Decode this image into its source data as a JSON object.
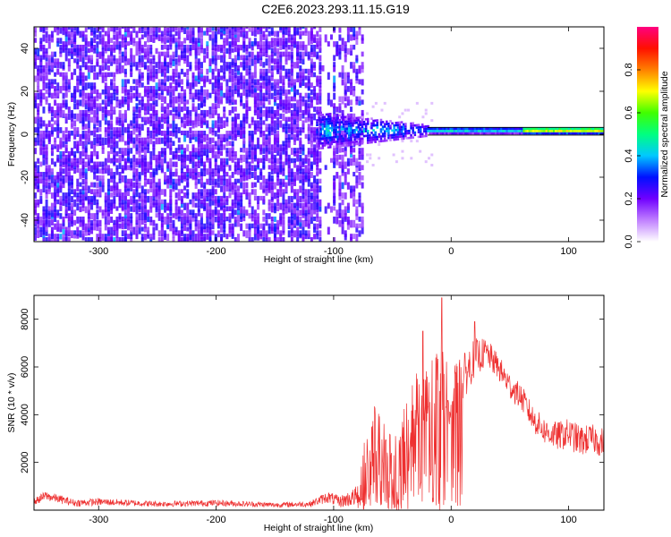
{
  "title": "C2E6.2023.293.11.15.G19",
  "chart_data": [
    {
      "type": "heatmap",
      "xlabel": "Height of straight line (km)",
      "ylabel": "Frequency (Hz)",
      "xlim": [
        -355,
        130
      ],
      "ylim": [
        -50,
        50
      ],
      "x_ticks": [
        -300,
        -200,
        -100,
        0,
        100
      ],
      "x_tick_labels": [
        "-300",
        "-200",
        "-100",
        "0",
        "100"
      ],
      "y_ticks": [
        -40,
        -20,
        0,
        20,
        40
      ],
      "y_tick_labels": [
        "-40",
        "-20",
        "0",
        "20",
        "40"
      ],
      "noise_region_x": [
        -355,
        -75
      ],
      "signal_x_start": -115,
      "signal_frequency_hz": 1.5,
      "colorbar": {
        "label": "Normalized spectral amplitude",
        "range": [
          0,
          1
        ],
        "ticks": [
          0.0,
          0.2,
          0.4,
          0.6,
          0.8
        ],
        "tick_labels": [
          "0.0",
          "0.2",
          "0.4",
          "0.6",
          "0.8"
        ],
        "colors": [
          "#ffffff",
          "#c080ff",
          "#7000ff",
          "#0010ff",
          "#00c8ff",
          "#00ff80",
          "#40ff00",
          "#ffff00",
          "#ff8000",
          "#ff1000",
          "#ff0080"
        ]
      }
    },
    {
      "type": "line",
      "xlabel": "Height of straight line (km)",
      "ylabel": "SNR (10 * v/v)",
      "xlim": [
        -355,
        130
      ],
      "ylim": [
        0,
        9000
      ],
      "x_ticks": [
        -300,
        -200,
        -100,
        0,
        100
      ],
      "x_tick_labels": [
        "-300",
        "-200",
        "-100",
        "0",
        "100"
      ],
      "y_ticks": [
        2000,
        4000,
        6000,
        8000
      ],
      "y_tick_labels": [
        "2000",
        "4000",
        "6000",
        "8000"
      ],
      "line_color": "#ee3030",
      "envelope": {
        "x": [
          -355,
          -345,
          -320,
          -300,
          -250,
          -200,
          -150,
          -120,
          -105,
          -95,
          -85,
          -80,
          -75,
          -65,
          -55,
          -45,
          -40,
          -30,
          -20,
          -10,
          0,
          10,
          20,
          30,
          40,
          50,
          60,
          70,
          80,
          90,
          100,
          110,
          120,
          130
        ],
        "y": [
          350,
          600,
          300,
          350,
          260,
          300,
          220,
          260,
          550,
          350,
          500,
          600,
          1700,
          3000,
          2200,
          2300,
          3600,
          4200,
          5200,
          5500,
          4800,
          5500,
          6400,
          6600,
          6000,
          5200,
          4700,
          3800,
          3300,
          3100,
          3200,
          2900,
          3000,
          2800
        ],
        "noise": [
          150,
          200,
          150,
          150,
          120,
          130,
          110,
          120,
          250,
          250,
          350,
          450,
          1100,
          1400,
          1300,
          1400,
          1500,
          1600,
          1500,
          1400,
          1300,
          1000,
          800,
          600,
          550,
          550,
          550,
          550,
          550,
          600,
          650,
          650,
          600,
          650
        ]
      },
      "spikes": [
        {
          "x": -24,
          "y": 7500
        },
        {
          "x": -8,
          "y": 8900
        },
        {
          "x": 20,
          "y": 7900
        }
      ]
    }
  ]
}
